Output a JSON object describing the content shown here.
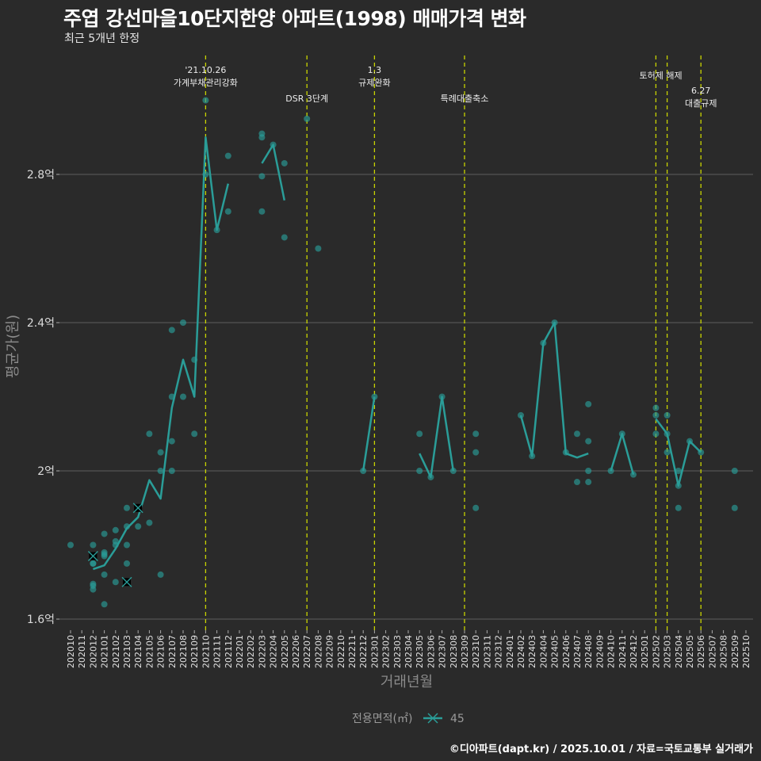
{
  "header": {
    "title": "주엽 강선마을10단지한양 아파트(1998) 매매가격 변화",
    "subtitle": "최근 5개년 한정"
  },
  "footer": "©디아파트(dapt.kr) / 2025.10.01 / 자료=국토교통부 실거래가",
  "colors": {
    "background": "#2a2a2a",
    "series": "#2a9d98",
    "event_line": "#c8d400",
    "grid": "#555555"
  },
  "chart_data": {
    "type": "line+scatter",
    "title": "주엽 강선마을10단지한양 아파트(1998) 매매가격 변화",
    "xlabel": "거래년월",
    "ylabel": "평균가(원)",
    "y_unit": "만원",
    "ylim": [
      15900,
      30900
    ],
    "yticks": [
      {
        "value": 16000,
        "label": "1.6억"
      },
      {
        "value": 20000,
        "label": "2억"
      },
      {
        "value": 24000,
        "label": "2.4억"
      },
      {
        "value": 28000,
        "label": "2.8억"
      }
    ],
    "grid": true,
    "categories": [
      "202010",
      "202011",
      "202012",
      "202101",
      "202102",
      "202103",
      "202104",
      "202105",
      "202106",
      "202107",
      "202108",
      "202109",
      "202110",
      "202111",
      "202112",
      "202201",
      "202202",
      "202203",
      "202204",
      "202205",
      "202206",
      "202207",
      "202208",
      "202209",
      "202210",
      "202211",
      "202212",
      "202301",
      "202302",
      "202303",
      "202304",
      "202305",
      "202306",
      "202307",
      "202308",
      "202309",
      "202310",
      "202311",
      "202312",
      "202401",
      "202402",
      "202403",
      "202404",
      "202405",
      "202406",
      "202407",
      "202408",
      "202409",
      "202410",
      "202411",
      "202412",
      "202501",
      "202502",
      "202503",
      "202504",
      "202505",
      "202506",
      "202507",
      "202508",
      "202509",
      "202510"
    ],
    "legend": {
      "title": "전용면적(㎡)",
      "position": "bottom",
      "entries": [
        "45"
      ]
    },
    "series": [
      {
        "name": "45",
        "average": {
          "202012": 17350,
          "202101": 17450,
          "202102": 17900,
          "202103": 18450,
          "202104": 18750,
          "202105": 19750,
          "202106": 19250,
          "202107": 21700,
          "202108": 23000,
          "202109": 22000,
          "202110": 29000,
          "202111": 26500,
          "202112": 27750,
          "202203": 28300,
          "202204": 28800,
          "202205": 27300,
          "202212": 20000,
          "202301": 22000,
          "202305": 20470,
          "202306": 19830,
          "202307": 22000,
          "202308": 20000,
          "202402": 21500,
          "202403": 20400,
          "202404": 23450,
          "202405": 24000,
          "202406": 20470,
          "202407": 20360,
          "202408": 20470,
          "202410": 20000,
          "202411": 21000,
          "202412": 19900,
          "202502": 21400,
          "202503": 21000,
          "202504": 19600,
          "202505": 20800,
          "202506": 20500
        },
        "transactions": {
          "202010": [
            18000
          ],
          "202012": [
            18000,
            17700,
            17500,
            17500,
            16950,
            16900,
            16800
          ],
          "202101": [
            18300,
            17800,
            17750,
            17700,
            17200,
            16400
          ],
          "202102": [
            18400,
            18100,
            18000,
            17000
          ],
          "202103": [
            19000,
            18500,
            18000,
            17500,
            17000
          ],
          "202104": [
            19000,
            18500
          ],
          "202105": [
            21000,
            18600
          ],
          "202106": [
            20500,
            20000,
            17200
          ],
          "202107": [
            23800,
            22000,
            20800,
            20000
          ],
          "202108": [
            24000,
            22000
          ],
          "202109": [
            23000,
            21000
          ],
          "202110": [
            30000,
            28000
          ],
          "202111": [
            26500
          ],
          "202112": [
            28500,
            27000
          ],
          "202203": [
            29100,
            29000,
            27950,
            27000
          ],
          "202204": [
            28800
          ],
          "202205": [
            28300,
            26300
          ],
          "202207": [
            29500
          ],
          "202208": [
            26000
          ],
          "202212": [
            20000
          ],
          "202301": [
            22000
          ],
          "202305": [
            21000,
            20000
          ],
          "202306": [
            19830
          ],
          "202307": [
            22000
          ],
          "202308": [
            20000
          ],
          "202310": [
            21000,
            20500,
            19000
          ],
          "202402": [
            21500
          ],
          "202403": [
            20400
          ],
          "202404": [
            23450
          ],
          "202405": [
            24000
          ],
          "202406": [
            20500
          ],
          "202407": [
            21000,
            19700
          ],
          "202408": [
            21800,
            20800,
            20000,
            19700
          ],
          "202410": [
            20000
          ],
          "202411": [
            21000
          ],
          "202412": [
            19900
          ],
          "202502": [
            21700,
            21500,
            21000
          ],
          "202503": [
            21500,
            21000,
            20500
          ],
          "202504": [
            20000,
            19600,
            19000
          ],
          "202505": [
            20800
          ],
          "202506": [
            20500
          ],
          "202509": [
            20000,
            19000
          ]
        },
        "cancelled": {
          "202012": [
            17700
          ],
          "202103": [
            17000
          ],
          "202104": [
            19000
          ]
        }
      }
    ],
    "events": [
      {
        "month": "202110",
        "lines": [
          "'21.10.26",
          "가계부채관리강화"
        ]
      },
      {
        "month": "202207",
        "lines": [
          "DSR 3단계"
        ]
      },
      {
        "month": "202301",
        "lines": [
          "1.3",
          "규제완화"
        ]
      },
      {
        "month": "202309",
        "lines": [
          "특례대출축소"
        ]
      },
      {
        "month": "202502",
        "lines": []
      },
      {
        "month": "202503",
        "lines": [
          "토허제 해제"
        ]
      },
      {
        "month": "202506",
        "lines": [
          "6.27",
          "대출규제"
        ]
      }
    ]
  }
}
